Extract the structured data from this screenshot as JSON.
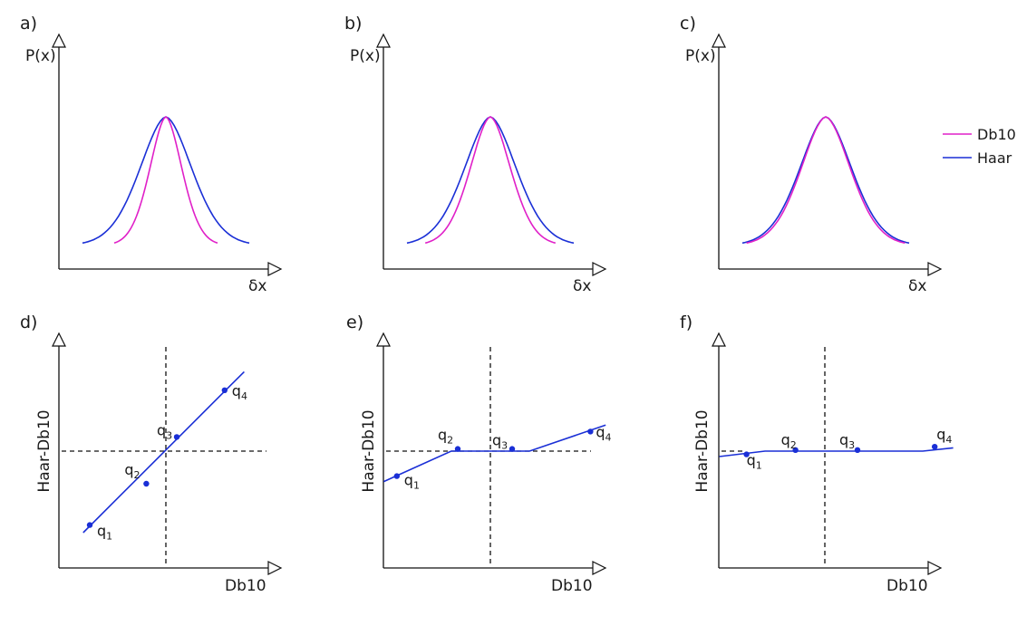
{
  "legend": [
    {
      "label": "Db10",
      "color": "#e020c8"
    },
    {
      "label": "Haar",
      "color": "#1a2fd6"
    }
  ],
  "colors": {
    "db10": "#e020c8",
    "haar": "#1a2fd6",
    "point": "#1a2fd6",
    "axis": "#111111"
  },
  "top_panels": [
    {
      "label": "a)",
      "y_axis": "P(x)",
      "x_axis": "δx",
      "db10_width": 0.62,
      "haar_width": 1.0
    },
    {
      "label": "b)",
      "y_axis": "P(x)",
      "x_axis": "δx",
      "db10_width": 0.78,
      "haar_width": 1.0
    },
    {
      "label": "c)",
      "y_axis": "P(x)",
      "x_axis": "δx",
      "db10_width": 0.95,
      "haar_width": 1.0
    }
  ],
  "bottom_panels": [
    {
      "label": "d)",
      "y_axis": "Haar-Db10",
      "x_axis": "Db10",
      "points": [
        {
          "name": "q",
          "sub": "1",
          "x": -0.7,
          "y": -0.68
        },
        {
          "name": "q",
          "sub": "2",
          "x": -0.18,
          "y": -0.3
        },
        {
          "name": "q",
          "sub": "3",
          "x": 0.1,
          "y": 0.13
        },
        {
          "name": "q",
          "sub": "4",
          "x": 0.54,
          "y": 0.56
        }
      ],
      "fit": [
        [
          -0.76,
          -0.75
        ],
        [
          0.72,
          0.73
        ]
      ]
    },
    {
      "label": "e)",
      "y_axis": "Haar-Db10",
      "x_axis": "Db10",
      "points": [
        {
          "name": "q",
          "sub": "1",
          "x": -0.86,
          "y": -0.23
        },
        {
          "name": "q",
          "sub": "2",
          "x": -0.3,
          "y": 0.02
        },
        {
          "name": "q",
          "sub": "3",
          "x": 0.2,
          "y": 0.02
        },
        {
          "name": "q",
          "sub": "4",
          "x": 0.92,
          "y": 0.18
        }
      ],
      "fit": [
        [
          -0.98,
          -0.28
        ],
        [
          -0.36,
          0.0
        ],
        [
          0.36,
          0.0
        ],
        [
          1.06,
          0.24
        ]
      ]
    },
    {
      "label": "f)",
      "y_axis": "Haar-Db10",
      "x_axis": "Db10",
      "points": [
        {
          "name": "q",
          "sub": "1",
          "x": -0.72,
          "y": -0.03
        },
        {
          "name": "q",
          "sub": "2",
          "x": -0.27,
          "y": 0.01
        },
        {
          "name": "q",
          "sub": "3",
          "x": 0.3,
          "y": 0.01
        },
        {
          "name": "q",
          "sub": "4",
          "x": 1.01,
          "y": 0.04
        }
      ],
      "fit": [
        [
          -0.97,
          -0.05
        ],
        [
          -0.55,
          0.0
        ],
        [
          0.9,
          0.0
        ],
        [
          1.18,
          0.03
        ]
      ]
    }
  ]
}
